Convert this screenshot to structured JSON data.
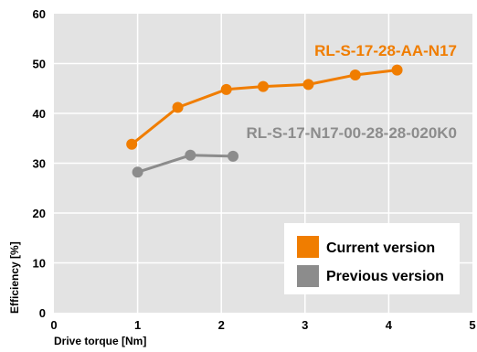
{
  "chart_data": {
    "type": "line",
    "xlabel": "Drive torque [Nm]",
    "ylabel": "Efficiency [%]",
    "xlim": [
      0,
      5
    ],
    "ylim": [
      0,
      60
    ],
    "xticks": [
      "0",
      "1",
      "2",
      "3",
      "4",
      "5"
    ],
    "yticks": [
      "0",
      "10",
      "20",
      "30",
      "40",
      "50",
      "60"
    ],
    "grid": true,
    "legend_position": "bottom-right",
    "series": [
      {
        "name": "Current version",
        "annotation": "RL-S-17-28-AA-N17",
        "color": "#f07d00",
        "x": [
          0.93,
          1.48,
          2.06,
          2.5,
          3.04,
          3.6,
          4.1
        ],
        "y": [
          33.8,
          41.2,
          44.8,
          45.4,
          45.8,
          47.7,
          48.7
        ]
      },
      {
        "name": "Previous version",
        "annotation": "RL-S-17-N17-00-28-28-020K0",
        "color": "#8c8c8c",
        "x": [
          1.0,
          1.63,
          2.14
        ],
        "y": [
          28.2,
          31.6,
          31.4
        ]
      }
    ]
  }
}
